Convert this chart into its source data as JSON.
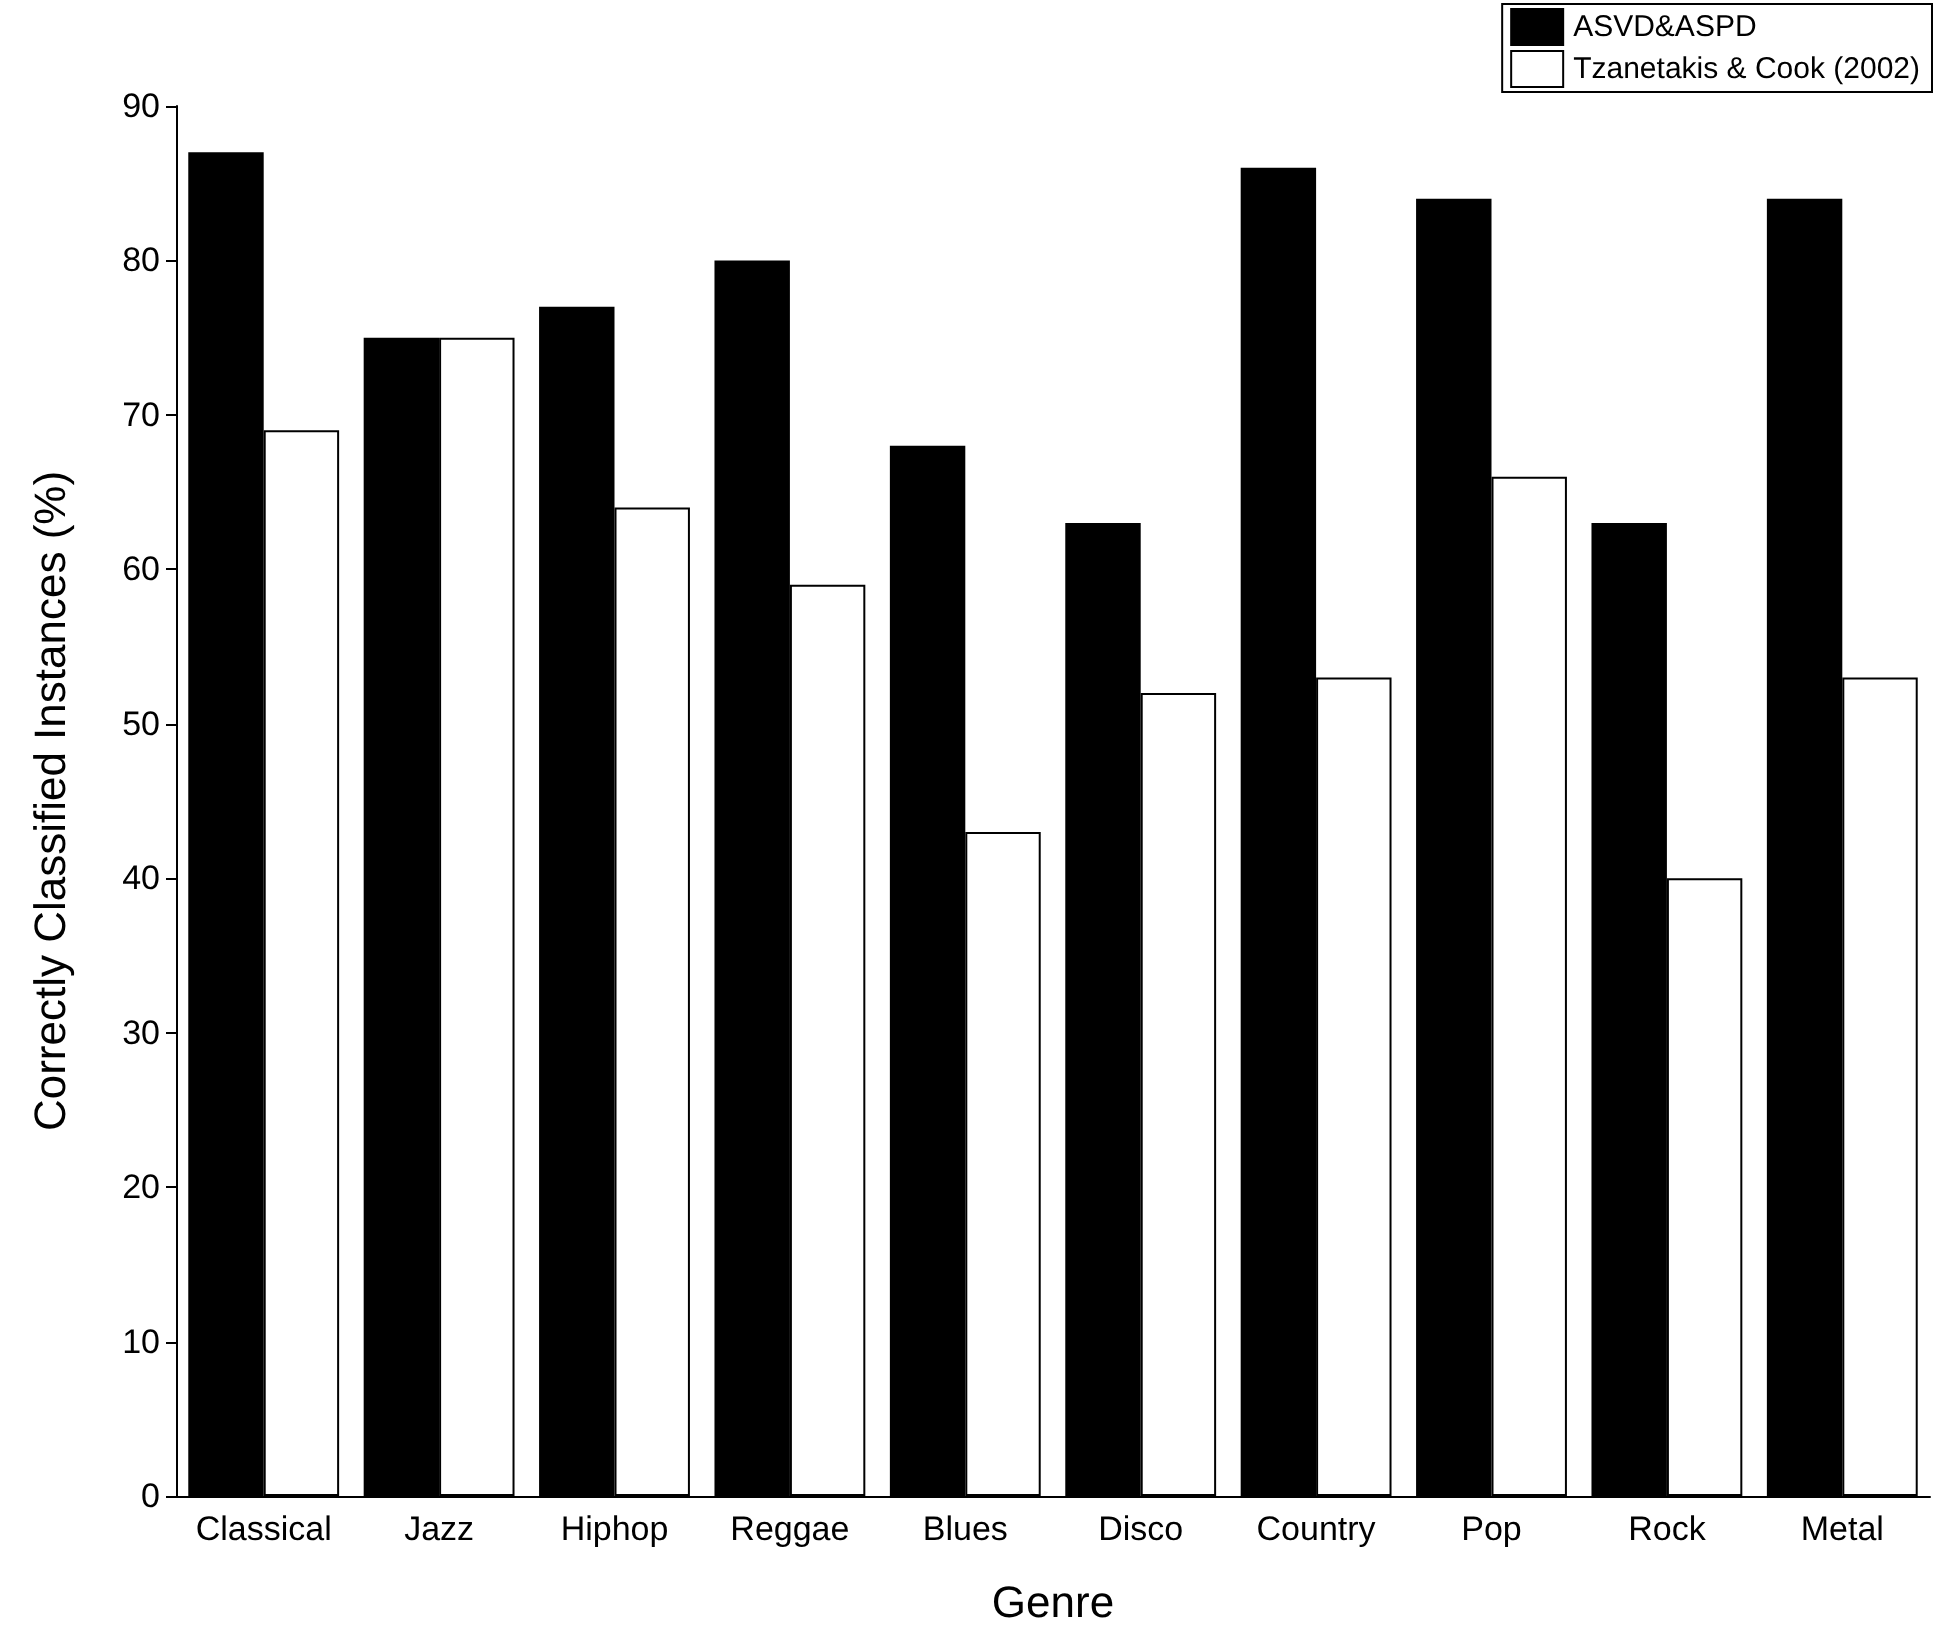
{
  "chart_data": {
    "type": "bar",
    "xlabel": "Genre",
    "ylabel": "Correctly Classified Instances (%)",
    "categories": [
      "Classical",
      "Jazz",
      "Hiphop",
      "Reggae",
      "Blues",
      "Disco",
      "Country",
      "Pop",
      "Rock",
      "Metal"
    ],
    "series": [
      {
        "name": "ASVD&ASPD",
        "color": "#000000",
        "values": [
          87,
          75,
          77,
          80,
          68,
          63,
          86,
          84,
          63,
          84
        ]
      },
      {
        "name": "Tzanetakis & Cook (2002)",
        "color": "#ffffff",
        "values": [
          69,
          75,
          64,
          59,
          43,
          52,
          53,
          66,
          40,
          53
        ]
      }
    ],
    "ylim": [
      0,
      90
    ],
    "yticks": [
      0,
      10,
      20,
      30,
      40,
      50,
      60,
      70,
      80,
      90
    ],
    "grid": false,
    "legend": "top right"
  }
}
